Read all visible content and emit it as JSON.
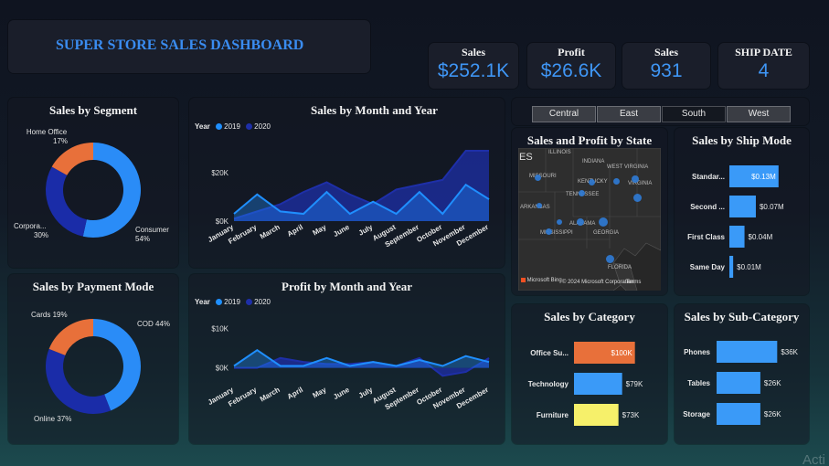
{
  "header": {
    "title": "SUPER STORE SALES DASHBOARD"
  },
  "kpis": [
    {
      "label": "Sales",
      "value": "$252.1K"
    },
    {
      "label": "Profit",
      "value": "$26.6K"
    },
    {
      "label": "Sales",
      "value": "931"
    },
    {
      "label": "SHIP DATE",
      "value": "4"
    }
  ],
  "region_tiles": [
    "Central",
    "East",
    "South",
    "West"
  ],
  "region_selected": "South",
  "colors": {
    "accent": "#3f96f5",
    "series2019": "#1f8fff",
    "series2020": "#1e2fa8",
    "orange": "#e8703a",
    "yellow": "#f6f06a"
  },
  "watermark": "Acti",
  "chart_data": [
    {
      "id": "segment",
      "type": "pie",
      "title": "Sales by Segment",
      "slices": [
        {
          "label": "Consumer",
          "pct_label": "54%",
          "value": 54,
          "color": "#2a8cf7"
        },
        {
          "label": "Corpora...",
          "pct_label": "30%",
          "value": 30,
          "color": "#1a2ca8"
        },
        {
          "label": "Home Office",
          "pct_label": "17%",
          "value": 17,
          "color": "#e8703a"
        }
      ]
    },
    {
      "id": "sales_month",
      "type": "area",
      "title": "Sales by Month and Year",
      "legend_title": "Year",
      "categories": [
        "January",
        "February",
        "March",
        "April",
        "May",
        "June",
        "July",
        "August",
        "September",
        "October",
        "November",
        "December"
      ],
      "yticks": [
        {
          "v": 0,
          "label": "$0K"
        },
        {
          "v": 20,
          "label": "$20K"
        }
      ],
      "ylim": [
        0,
        35
      ],
      "series": [
        {
          "name": "2019",
          "color": "#1f8fff",
          "values": [
            3,
            11,
            4,
            3,
            12,
            3,
            8,
            3,
            12,
            3,
            15,
            9
          ]
        },
        {
          "name": "2020",
          "color": "#1e2fa8",
          "values": [
            1,
            4,
            7,
            12,
            16,
            11,
            7,
            13,
            15,
            17,
            29,
            29
          ]
        }
      ]
    },
    {
      "id": "payment",
      "type": "pie",
      "title": "Sales by Payment Mode",
      "slices": [
        {
          "label": "COD",
          "pct_label": "44%",
          "value": 44,
          "color": "#2a8cf7"
        },
        {
          "label": "Online",
          "pct_label": "37%",
          "value": 37,
          "color": "#1a2ca8"
        },
        {
          "label": "Cards",
          "pct_label": "19%",
          "value": 19,
          "color": "#e8703a"
        }
      ]
    },
    {
      "id": "profit_month",
      "type": "area",
      "title": "Profit by Month and Year",
      "legend_title": "Year",
      "categories": [
        "January",
        "February",
        "March",
        "April",
        "May",
        "June",
        "July",
        "August",
        "September",
        "October",
        "November",
        "December"
      ],
      "yticks": [
        {
          "v": 0,
          "label": "$0K"
        },
        {
          "v": 10,
          "label": "$10K"
        }
      ],
      "ylim": [
        -4,
        14
      ],
      "series": [
        {
          "name": "2019",
          "color": "#1f8fff",
          "values": [
            0.5,
            4.5,
            0.5,
            0.5,
            2.5,
            0.5,
            1.5,
            0.5,
            2,
            0.5,
            3,
            1.5
          ]
        },
        {
          "name": "2020",
          "color": "#1e2fa8",
          "values": [
            0,
            0,
            2.5,
            1.5,
            1,
            1,
            1.5,
            0.5,
            2.5,
            -2,
            -1,
            2.5
          ]
        }
      ]
    },
    {
      "id": "ship_mode",
      "type": "bar",
      "title": "Sales by Ship Mode",
      "categories": [
        "Standar...",
        "Second ...",
        "First Class",
        "Same Day"
      ],
      "values": [
        130,
        70,
        40,
        10
      ],
      "value_labels": [
        "$0.13M",
        "$0.07M",
        "$0.04M",
        "$0.01M"
      ],
      "colors": [
        "#3a9af8",
        "#3a9af8",
        "#3a9af8",
        "#3a9af8"
      ],
      "xlim": [
        0,
        145
      ]
    },
    {
      "id": "category",
      "type": "bar",
      "title": "Sales by Category",
      "categories": [
        "Office Su...",
        "Technology",
        "Furniture"
      ],
      "values": [
        100,
        79,
        73
      ],
      "value_labels": [
        "$100K",
        "$79K",
        "$73K"
      ],
      "colors": [
        "#e8703a",
        "#3a9af8",
        "#f6f06a"
      ],
      "xlim": [
        0,
        105
      ]
    },
    {
      "id": "subcategory",
      "type": "bar",
      "title": "Sales by Sub-Category",
      "categories": [
        "Phones",
        "Tables",
        "Storage"
      ],
      "values": [
        36,
        26,
        26
      ],
      "value_labels": [
        "$36K",
        "$26K",
        "$26K"
      ],
      "colors": [
        "#3a9af8",
        "#3a9af8",
        "#3a9af8"
      ],
      "xlim": [
        0,
        38
      ]
    }
  ],
  "map": {
    "title": "Sales and Profit by State",
    "state_labels": [
      "ILLINOIS",
      "INDIANA",
      "MISSOURI",
      "KENTUCKY",
      "WEST VIRGINIA",
      "VIRGINIA",
      "TENNESSEE",
      "ARKANSAS",
      "ALABAMA",
      "MISSISSIPPI",
      "GEORGIA",
      "FLORIDA",
      "ES"
    ],
    "attribution": "Microsoft Bing",
    "copyright": "© 2024 Microsoft Corporation",
    "terms": "Terms"
  }
}
